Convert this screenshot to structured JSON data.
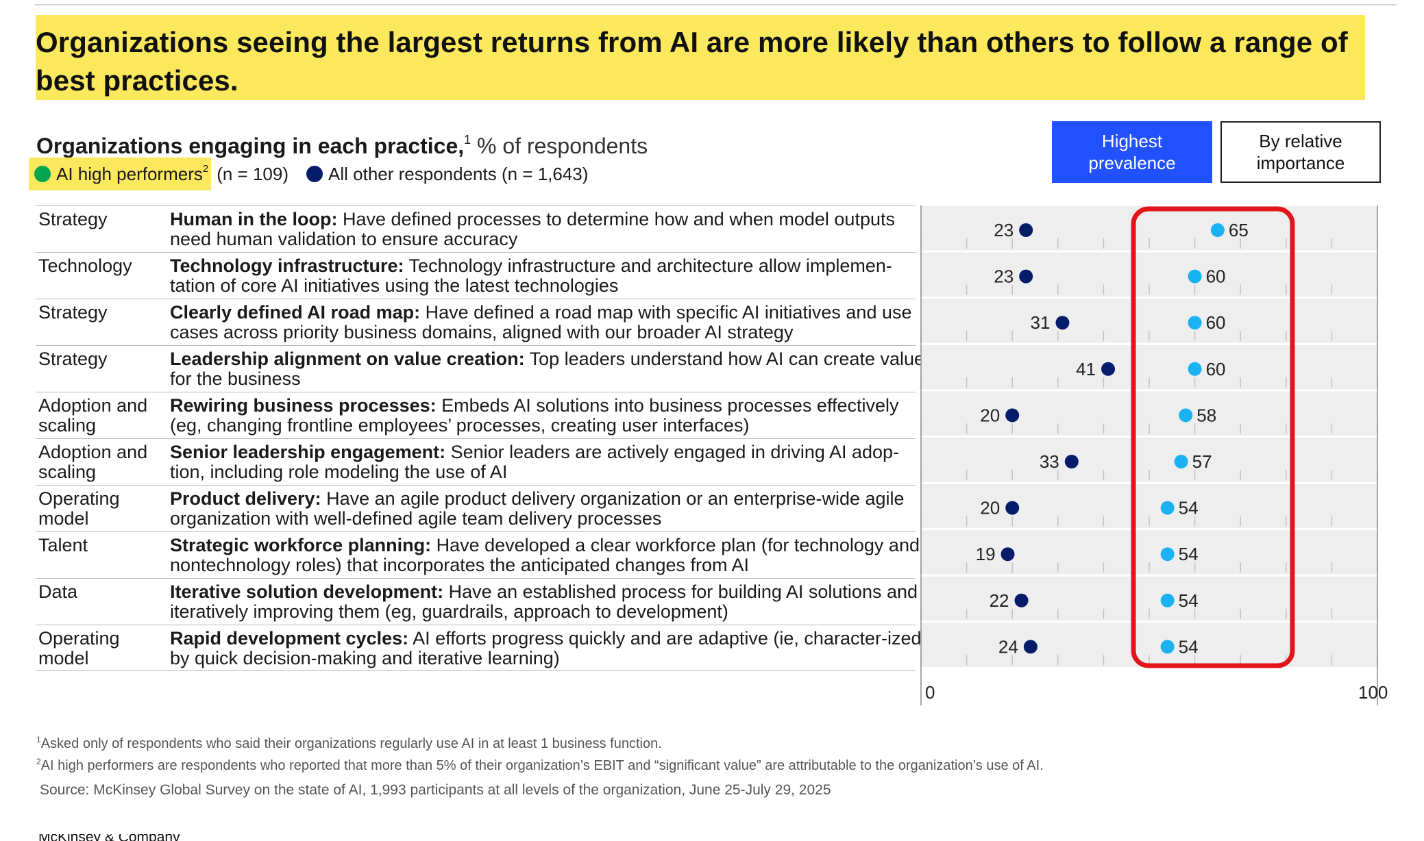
{
  "headline": "Organizations seeing the largest returns from AI are more likely than others to follow a range of best practices.",
  "subtitle": {
    "bold": "Organizations engaging in each practice,",
    "sup": "1",
    "unit": " % of respondents"
  },
  "legend": {
    "high": {
      "label": "AI high performers",
      "sup": "2",
      "n": "(n = 109)",
      "color": "#00a650"
    },
    "other": {
      "label": "All other respondents (n = 1,643)",
      "color": "#051c6b"
    }
  },
  "toggle": {
    "active": "Highest prevalence",
    "inactive": "By relative importance"
  },
  "rows": [
    {
      "category": "Strategy",
      "title": "Human in the loop:",
      "text": " Have defined processes to determine how and when model outputs need human validation to ensure accuracy"
    },
    {
      "category": "Technology",
      "title": "Technology infrastructure:",
      "text": " Technology infrastructure and architecture allow implemen-tation of core AI initiatives using the latest technologies"
    },
    {
      "category": "Strategy",
      "title": "Clearly defined AI road map:",
      "text": " Have defined a road map with specific AI initiatives and use cases across priority business domains, aligned with our broader AI strategy"
    },
    {
      "category": "Strategy",
      "title": "Leadership alignment on value creation:",
      "text": " Top leaders understand how AI can create value for the business"
    },
    {
      "category": "Adoption and scaling",
      "title": "Rewiring business processes:",
      "text": " Embeds AI solutions into business processes effectively (eg, changing frontline employees’ processes, creating user interfaces)"
    },
    {
      "category": "Adoption and scaling",
      "title": "Senior leadership engagement:",
      "text": " Senior leaders are actively engaged in driving AI adop-tion, including role modeling the use of AI"
    },
    {
      "category": "Operating model",
      "title": "Product delivery:",
      "text": " Have an agile product delivery organization or an enterprise-wide agile organization with well-defined agile team delivery processes"
    },
    {
      "category": "Talent",
      "title": "Strategic workforce planning:",
      "text": " Have developed a clear workforce plan (for technology and nontechnology roles) that incorporates the anticipated changes from AI"
    },
    {
      "category": "Data",
      "title": "Iterative solution development:",
      "text": " Have an established process for building AI solutions and iteratively improving them (eg, guardrails, approach to development)"
    },
    {
      "category": "Operating model",
      "title": "Rapid development cycles:",
      "text": " AI efforts progress quickly and are adaptive (ie, character-ized by quick decision-making and iterative learning)"
    }
  ],
  "chart_data": {
    "type": "scatter",
    "xlim": [
      0,
      100
    ],
    "xticks": [
      "0",
      "100"
    ],
    "series": [
      {
        "name": "All other respondents (n = 1,643)",
        "color": "#051c6b",
        "values": [
          23,
          23,
          31,
          41,
          20,
          33,
          20,
          19,
          22,
          24
        ]
      },
      {
        "name": "AI high performers",
        "color": "#1ab2f2",
        "values": [
          65,
          60,
          60,
          60,
          58,
          57,
          54,
          54,
          54,
          54
        ]
      }
    ],
    "highlight_color": "#e3151a",
    "row_band_color": "#eeeeee"
  },
  "footnotes": [
    {
      "sup": "1",
      "text": "Asked only of respondents who said their organizations regularly use AI in at least 1 business function."
    },
    {
      "sup": "2",
      "text": "AI high performers are respondents who reported that more than 5% of their organization’s EBIT and “significant value” are attributable to the organization’s use of AI."
    }
  ],
  "source": "Source: McKinsey Global Survey on the state of AI, 1,993 participants at all levels of the organization, June 25-July 29, 2025",
  "brand": "McKinsey & Company"
}
